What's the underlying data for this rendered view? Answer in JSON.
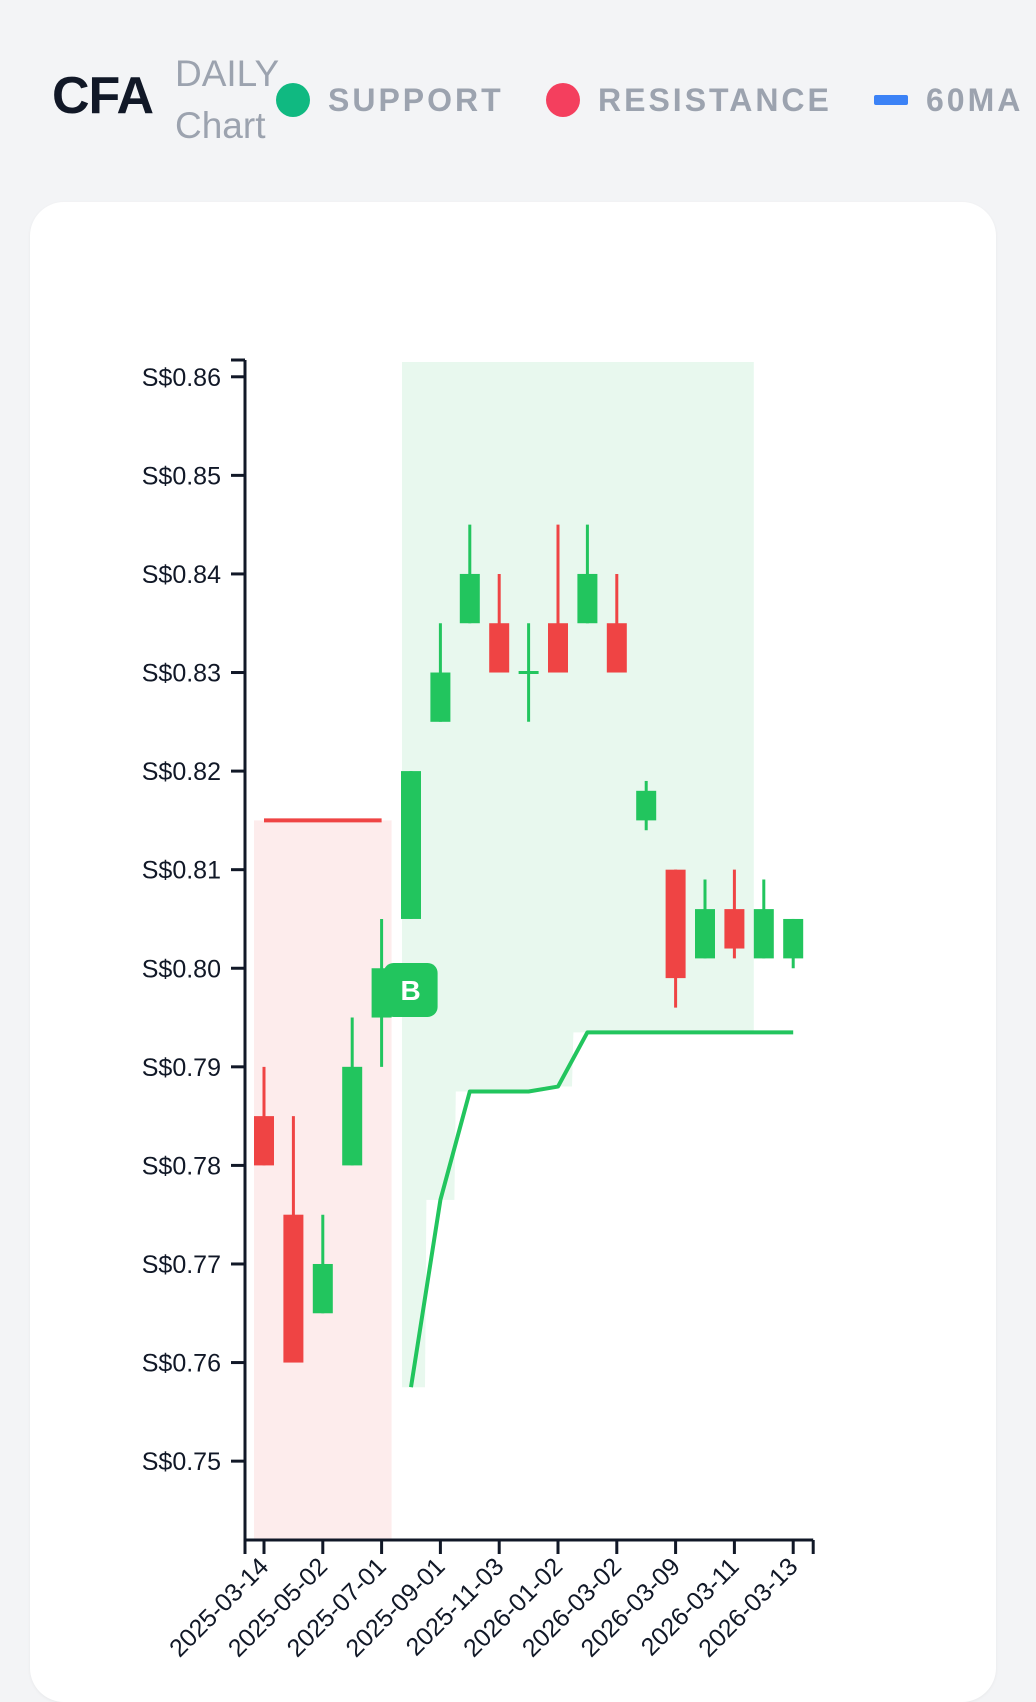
{
  "header": {
    "ticker": "CFA",
    "period_line1": "DAILY",
    "period_line2": "Chart"
  },
  "legend": [
    {
      "label": "SUPPORT",
      "symbol": "dot",
      "color": "#10b981"
    },
    {
      "label": "RESISTANCE",
      "symbol": "dot",
      "color": "#f43f5e"
    },
    {
      "label": "60MA",
      "symbol": "bar",
      "color": "#3b82f6"
    }
  ],
  "colors": {
    "up": "#22c55e",
    "down": "#ef4444",
    "support_zone": "#e8f8ee",
    "resistance_zone": "#fdecec",
    "ma_line": "#22c55e",
    "resistance_line": "#ef4444",
    "marker_bg": "#22c55e"
  },
  "chart_data": {
    "type": "candlestick",
    "y_tick_labels": [
      "S$0.75",
      "S$0.76",
      "S$0.77",
      "S$0.78",
      "S$0.79",
      "S$0.80",
      "S$0.81",
      "S$0.82",
      "S$0.83",
      "S$0.84",
      "S$0.85",
      "S$0.86"
    ],
    "y_ticks": [
      0.75,
      0.76,
      0.77,
      0.78,
      0.79,
      0.8,
      0.81,
      0.82,
      0.83,
      0.84,
      0.85,
      0.86
    ],
    "ylim": [
      0.742,
      0.8615
    ],
    "x_tick_labels": [
      "2025-03-14",
      "2025-05-02",
      "2025-07-01",
      "2025-09-01",
      "2025-11-03",
      "2026-01-02",
      "2026-03-02",
      "2026-03-09",
      "2026-03-11",
      "2026-03-13"
    ],
    "candles": [
      {
        "open": 0.785,
        "high": 0.79,
        "low": 0.78,
        "close": 0.78
      },
      {
        "open": 0.775,
        "high": 0.785,
        "low": 0.76,
        "close": 0.76
      },
      {
        "open": 0.765,
        "high": 0.775,
        "low": 0.765,
        "close": 0.77
      },
      {
        "open": 0.78,
        "high": 0.795,
        "low": 0.78,
        "close": 0.79
      },
      {
        "open": 0.795,
        "high": 0.805,
        "low": 0.79,
        "close": 0.8
      },
      {
        "open": 0.805,
        "high": 0.82,
        "low": 0.805,
        "close": 0.82
      },
      {
        "open": 0.825,
        "high": 0.835,
        "low": 0.825,
        "close": 0.83
      },
      {
        "open": 0.835,
        "high": 0.845,
        "low": 0.835,
        "close": 0.84
      },
      {
        "open": 0.835,
        "high": 0.84,
        "low": 0.83,
        "close": 0.83
      },
      {
        "open": 0.83,
        "high": 0.835,
        "low": 0.825,
        "close": 0.83
      },
      {
        "open": 0.835,
        "high": 0.845,
        "low": 0.83,
        "close": 0.83
      },
      {
        "open": 0.835,
        "high": 0.845,
        "low": 0.835,
        "close": 0.84
      },
      {
        "open": 0.835,
        "high": 0.84,
        "low": 0.83,
        "close": 0.83
      },
      {
        "open": 0.815,
        "high": 0.819,
        "low": 0.814,
        "close": 0.818
      },
      {
        "open": 0.81,
        "high": 0.81,
        "low": 0.796,
        "close": 0.799
      },
      {
        "open": 0.801,
        "high": 0.809,
        "low": 0.801,
        "close": 0.806
      },
      {
        "open": 0.806,
        "high": 0.81,
        "low": 0.801,
        "close": 0.802
      },
      {
        "open": 0.801,
        "high": 0.809,
        "low": 0.801,
        "close": 0.806
      },
      {
        "open": 0.801,
        "high": 0.805,
        "low": 0.8,
        "close": 0.805
      }
    ],
    "ma60": [
      null,
      null,
      null,
      null,
      null,
      0.7575,
      0.7765,
      0.7875,
      0.7875,
      0.7875,
      0.788,
      0.7935,
      0.7935,
      0.7935,
      0.7935,
      0.7935,
      0.7935,
      0.7935,
      0.7935
    ],
    "resistance_line": {
      "value": 0.815,
      "from_index": 0,
      "to_index": 4
    },
    "resistance_zone": {
      "top": 0.815,
      "bottom": 0.742,
      "from_index": 0,
      "to_index": 4
    },
    "support_zone": {
      "from_index": 5,
      "to_index": 17
    },
    "marker": {
      "label": "B",
      "index": 4,
      "value": 0.7978
    }
  }
}
